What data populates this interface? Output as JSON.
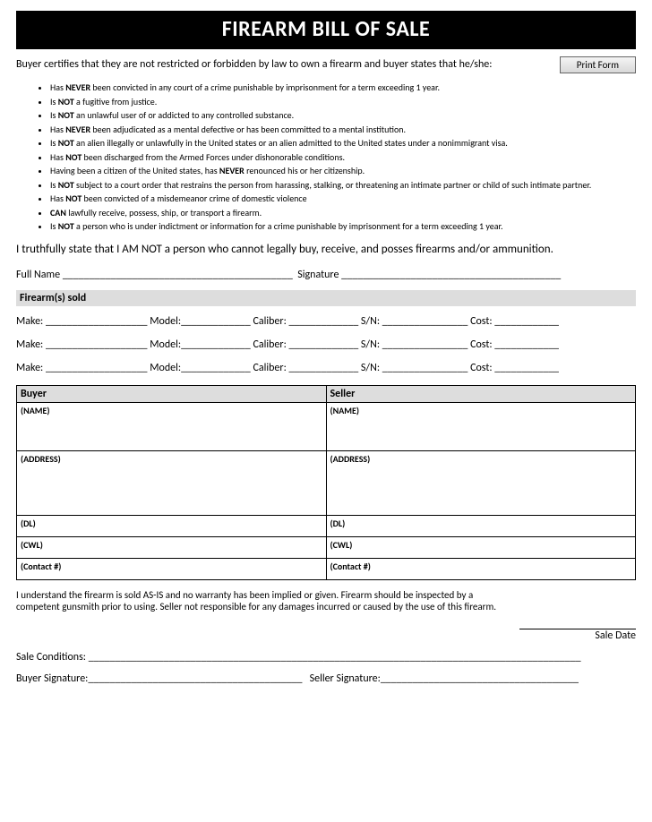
{
  "title": "FIREARM BILL OF SALE",
  "print_button": "Print Form",
  "intro": "Buyer certifies that they are not restricted or forbidden by law to own a firearm and buyer states that he/she:",
  "bullets": [
    {
      "pre": "Has ",
      "b": "NEVER",
      "post": " been convicted in any court of a crime punishable by imprisonment for a term exceeding 1 year."
    },
    {
      "pre": "Is ",
      "b": "NOT",
      "post": " a fugitive from justice."
    },
    {
      "pre": "Is ",
      "b": "NOT",
      "post": " an unlawful user of or addicted to any controlled substance."
    },
    {
      "pre": "Has ",
      "b": "NEVER",
      "post": " been adjudicated as a mental defective or has been committed to a mental institution."
    },
    {
      "pre": "Is ",
      "b": "NOT",
      "post": " an alien illegally or unlawfully in the United states or an alien admitted to the United states under a nonimmigrant visa."
    },
    {
      "pre": "Has ",
      "b": "NOT",
      "post": " been discharged from the Armed Forces under dishonorable conditions."
    },
    {
      "pre": "Having been a citizen of the United states, has ",
      "b": "NEVER",
      "post": " renounced his or her citizenship."
    },
    {
      "pre": "Is ",
      "b": "NOT",
      "post": " subject to a court order that restrains the person from harassing, stalking, or threatening an intimate partner or child of such intimate partner."
    },
    {
      "pre": "Has ",
      "b": "NOT",
      "post": " been convicted of a misdemeanor crime of domestic violence"
    },
    {
      "pre": "",
      "b": "CAN",
      "post": " lawfully receive, possess, ship, or transport a firearm."
    },
    {
      "pre": "Is ",
      "b": "NOT",
      "post": " a person who is under indictment or information for a crime punishable by imprisonment for a term exceeding 1 year."
    }
  ],
  "statement": "I truthfully state that I AM NOT a person who cannot legally buy, receive, and posses firearms and/or ammunition.",
  "fullname_label": "Full Name",
  "signature_label": "Signature",
  "firearms_section": "Firearm(s) sold",
  "firearm_fields": {
    "make": "Make:",
    "model": "Model:",
    "caliber": "Caliber:",
    "sn": "S/N:",
    "cost": "Cost:"
  },
  "buyer_seller": {
    "buyer": "Buyer",
    "seller": "Seller",
    "name": "(NAME)",
    "address": "(ADDRESS)",
    "dl": "(DL)",
    "cwl": "(CWL)",
    "contact": "(Contact #)"
  },
  "disclaimer": "I understand the firearm is sold AS-IS and no warranty has been implied or given.  Firearm should be inspected by a competent gunsmith prior to using.  Seller not responsible for any damages incurred or caused by the use of this firearm.",
  "sale_date": "Sale Date",
  "sale_conditions": "Sale Conditions:",
  "buyer_sig": "Buyer Signature:",
  "seller_sig": "Seller Signature:",
  "underlines": {
    "fullname": "___________________________________________",
    "signature": "_________________________________________",
    "make": "___________________",
    "model": "_____________",
    "caliber": "_____________",
    "sn": "________________",
    "cost": "____________",
    "conditions": "____________________________________________________________________________________________",
    "bsig": "________________________________________",
    "ssig": "_____________________________________"
  }
}
